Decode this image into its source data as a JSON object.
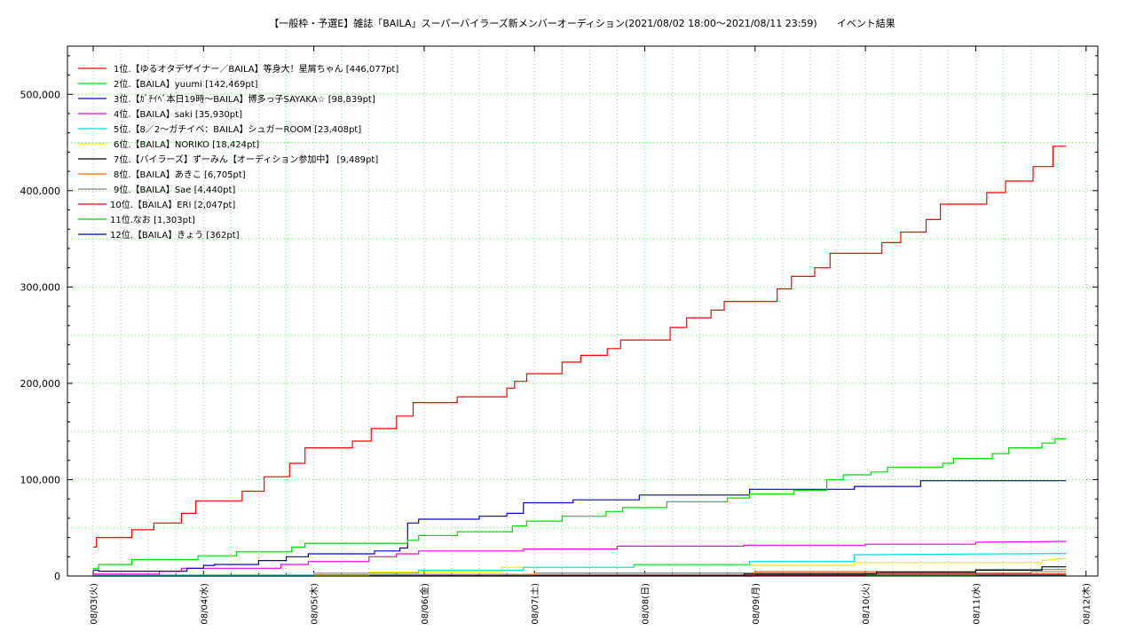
{
  "chart_data": {
    "type": "line",
    "title": "【一般枠・予選E】雑誌「BAILA」スーパーバイラーズ新メンバーオーディション(2021/08/02 18:00～2021/08/11 23:59)　　イベント結果",
    "xlabel": "",
    "ylabel": "",
    "ylim": [
      0,
      550000
    ],
    "xlim": [
      "2021-08-03",
      "2021-08-12"
    ],
    "grid": true,
    "legend_position": "top-left",
    "y_ticks": [
      {
        "value": 0,
        "label": "0"
      },
      {
        "value": 100000,
        "label": "100,000"
      },
      {
        "value": 200000,
        "label": "200,000"
      },
      {
        "value": 300000,
        "label": "300,000"
      },
      {
        "value": 400000,
        "label": "400,000"
      },
      {
        "value": 500000,
        "label": "500,000"
      }
    ],
    "x_ticks": [
      {
        "value": 0,
        "label": "08/03(火)"
      },
      {
        "value": 1,
        "label": "08/04(水)"
      },
      {
        "value": 2,
        "label": "08/05(木)"
      },
      {
        "value": 3,
        "label": "08/06(金)"
      },
      {
        "value": 4,
        "label": "08/07(土)"
      },
      {
        "value": 5,
        "label": "08/08(日)"
      },
      {
        "value": 6,
        "label": "08/09(月)"
      },
      {
        "value": 7,
        "label": "08/10(火)"
      },
      {
        "value": 8,
        "label": "08/11(水)"
      },
      {
        "value": 9,
        "label": "08/12(木)"
      }
    ],
    "series": [
      {
        "label": "1位.【ゆるオタデザイナー／BAILA】等身大！星屑ちゃん [446,077pt]",
        "color": "#ff0000",
        "points": [
          [
            0,
            30000
          ],
          [
            0.03,
            30000
          ],
          [
            0.03,
            40000
          ],
          [
            0.35,
            40000
          ],
          [
            0.35,
            48000
          ],
          [
            0.55,
            48000
          ],
          [
            0.55,
            55000
          ],
          [
            0.8,
            55000
          ],
          [
            0.8,
            65000
          ],
          [
            0.93,
            65000
          ],
          [
            0.93,
            78000
          ],
          [
            1.35,
            78000
          ],
          [
            1.35,
            88000
          ],
          [
            1.55,
            88000
          ],
          [
            1.55,
            103000
          ],
          [
            1.78,
            103000
          ],
          [
            1.78,
            117000
          ],
          [
            1.92,
            117000
          ],
          [
            1.92,
            133000
          ],
          [
            2.35,
            133000
          ],
          [
            2.35,
            140000
          ],
          [
            2.52,
            140000
          ],
          [
            2.52,
            153000
          ],
          [
            2.75,
            153000
          ],
          [
            2.75,
            166000
          ],
          [
            2.9,
            166000
          ],
          [
            2.9,
            180000
          ],
          [
            3.3,
            180000
          ],
          [
            3.3,
            186000
          ],
          [
            3.75,
            186000
          ],
          [
            3.75,
            195000
          ],
          [
            3.82,
            195000
          ],
          [
            3.82,
            202000
          ],
          [
            3.93,
            202000
          ],
          [
            3.93,
            210000
          ],
          [
            4.25,
            210000
          ],
          [
            4.25,
            222000
          ],
          [
            4.42,
            222000
          ],
          [
            4.42,
            229000
          ],
          [
            4.66,
            229000
          ],
          [
            4.66,
            236000
          ],
          [
            4.78,
            236000
          ],
          [
            4.78,
            245000
          ],
          [
            5.23,
            245000
          ],
          [
            5.23,
            258000
          ],
          [
            5.38,
            258000
          ],
          [
            5.38,
            268000
          ],
          [
            5.6,
            268000
          ],
          [
            5.6,
            276000
          ],
          [
            5.72,
            276000
          ],
          [
            5.72,
            285000
          ],
          [
            6.2,
            285000
          ],
          [
            6.2,
            298000
          ],
          [
            6.33,
            298000
          ],
          [
            6.33,
            311000
          ],
          [
            6.54,
            311000
          ],
          [
            6.54,
            320000
          ],
          [
            6.68,
            320000
          ],
          [
            6.68,
            335000
          ],
          [
            7.15,
            335000
          ],
          [
            7.15,
            346000
          ],
          [
            7.32,
            346000
          ],
          [
            7.32,
            357000
          ],
          [
            7.55,
            357000
          ],
          [
            7.55,
            370000
          ],
          [
            7.68,
            370000
          ],
          [
            7.68,
            386000
          ],
          [
            8.1,
            386000
          ],
          [
            8.1,
            398000
          ],
          [
            8.27,
            398000
          ],
          [
            8.27,
            410000
          ],
          [
            8.52,
            410000
          ],
          [
            8.52,
            425000
          ],
          [
            8.7,
            425000
          ],
          [
            8.7,
            446077
          ],
          [
            8.82,
            446077
          ]
        ]
      },
      {
        "label": "2位.【BAILA】yuumi [142,469pt]",
        "color": "#00dd00",
        "points": [
          [
            0,
            8000
          ],
          [
            0.05,
            8000
          ],
          [
            0.05,
            12000
          ],
          [
            0.35,
            12000
          ],
          [
            0.35,
            17000
          ],
          [
            0.95,
            17000
          ],
          [
            0.95,
            21000
          ],
          [
            1.3,
            21000
          ],
          [
            1.3,
            25000
          ],
          [
            1.8,
            25000
          ],
          [
            1.8,
            30000
          ],
          [
            1.92,
            30000
          ],
          [
            1.92,
            34000
          ],
          [
            2.85,
            34000
          ],
          [
            2.85,
            37000
          ],
          [
            2.95,
            37000
          ],
          [
            2.95,
            42000
          ],
          [
            3.3,
            42000
          ],
          [
            3.3,
            46000
          ],
          [
            3.8,
            46000
          ],
          [
            3.8,
            52000
          ],
          [
            3.93,
            52000
          ],
          [
            3.93,
            57000
          ],
          [
            4.25,
            57000
          ],
          [
            4.25,
            62000
          ],
          [
            4.65,
            62000
          ],
          [
            4.65,
            67000
          ],
          [
            4.8,
            67000
          ],
          [
            4.8,
            71000
          ],
          [
            5.2,
            71000
          ],
          [
            5.2,
            77000
          ],
          [
            5.75,
            77000
          ],
          [
            5.75,
            81000
          ],
          [
            5.95,
            81000
          ],
          [
            5.95,
            85000
          ],
          [
            6.35,
            85000
          ],
          [
            6.35,
            89000
          ],
          [
            6.65,
            89000
          ],
          [
            6.65,
            100000
          ],
          [
            6.8,
            100000
          ],
          [
            6.8,
            105000
          ],
          [
            7.05,
            105000
          ],
          [
            7.05,
            108000
          ],
          [
            7.2,
            108000
          ],
          [
            7.2,
            113000
          ],
          [
            7.7,
            113000
          ],
          [
            7.7,
            117000
          ],
          [
            7.8,
            117000
          ],
          [
            7.8,
            122000
          ],
          [
            8.15,
            122000
          ],
          [
            8.15,
            127000
          ],
          [
            8.3,
            127000
          ],
          [
            8.3,
            133000
          ],
          [
            8.6,
            133000
          ],
          [
            8.6,
            138000
          ],
          [
            8.72,
            138000
          ],
          [
            8.72,
            142469
          ],
          [
            8.82,
            142469
          ]
        ]
      },
      {
        "label": "3位.【ｶﾞﾁｲﾍﾞ本日19時〜BAILA】博多っ子SAYAKA☆ [98,839pt]",
        "color": "#0000dd",
        "points": [
          [
            0,
            6000
          ],
          [
            0.05,
            6000
          ],
          [
            0.05,
            5000
          ],
          [
            0.85,
            5000
          ],
          [
            0.85,
            8000
          ],
          [
            1.0,
            8000
          ],
          [
            1.0,
            11000
          ],
          [
            1.1,
            11000
          ],
          [
            1.1,
            12000
          ],
          [
            1.5,
            12000
          ],
          [
            1.5,
            16000
          ],
          [
            1.75,
            16000
          ],
          [
            1.75,
            20000
          ],
          [
            1.95,
            20000
          ],
          [
            1.95,
            23000
          ],
          [
            2.55,
            23000
          ],
          [
            2.55,
            26000
          ],
          [
            2.78,
            26000
          ],
          [
            2.78,
            29000
          ],
          [
            2.85,
            29000
          ],
          [
            2.85,
            55000
          ],
          [
            2.95,
            55000
          ],
          [
            2.95,
            59000
          ],
          [
            3.5,
            59000
          ],
          [
            3.5,
            62000
          ],
          [
            3.75,
            62000
          ],
          [
            3.75,
            65000
          ],
          [
            3.9,
            65000
          ],
          [
            3.9,
            76000
          ],
          [
            4.35,
            76000
          ],
          [
            4.35,
            79000
          ],
          [
            4.95,
            79000
          ],
          [
            4.95,
            84000
          ],
          [
            5.95,
            84000
          ],
          [
            5.95,
            90000
          ],
          [
            6.9,
            90000
          ],
          [
            6.9,
            93000
          ],
          [
            7.5,
            93000
          ],
          [
            7.5,
            98839
          ],
          [
            8.82,
            98839
          ]
        ]
      },
      {
        "label": "4位.【BAILA】saki [35,930pt]",
        "color": "#ee00ee",
        "points": [
          [
            0,
            2000
          ],
          [
            0.6,
            2000
          ],
          [
            0.6,
            5000
          ],
          [
            0.8,
            5000
          ],
          [
            0.8,
            8000
          ],
          [
            1.7,
            8000
          ],
          [
            1.7,
            12000
          ],
          [
            1.95,
            12000
          ],
          [
            1.95,
            15000
          ],
          [
            2.5,
            15000
          ],
          [
            2.5,
            20000
          ],
          [
            2.75,
            20000
          ],
          [
            2.75,
            23000
          ],
          [
            2.95,
            23000
          ],
          [
            2.95,
            26000
          ],
          [
            3.9,
            26000
          ],
          [
            3.9,
            28000
          ],
          [
            4.75,
            28000
          ],
          [
            4.75,
            31000
          ],
          [
            5.9,
            31000
          ],
          [
            5.9,
            32000
          ],
          [
            7.0,
            32000
          ],
          [
            7.0,
            33000
          ],
          [
            8.0,
            33000
          ],
          [
            8.0,
            35000
          ],
          [
            8.82,
            35930
          ]
        ]
      },
      {
        "label": "5位.【8／2〜ガチイベ：BAILA】シュガーROOM [23,408pt]",
        "color": "#00dddd",
        "points": [
          [
            0,
            1000
          ],
          [
            2.0,
            1000
          ],
          [
            2.0,
            3000
          ],
          [
            2.95,
            3000
          ],
          [
            2.95,
            6000
          ],
          [
            3.9,
            6000
          ],
          [
            3.9,
            9000
          ],
          [
            4.9,
            9000
          ],
          [
            4.9,
            12000
          ],
          [
            5.95,
            12000
          ],
          [
            5.95,
            15000
          ],
          [
            6.9,
            15000
          ],
          [
            6.9,
            22000
          ],
          [
            8.82,
            23408
          ]
        ]
      },
      {
        "label": "6位.【BAILA】NORIKO [18,424pt]",
        "color": "#eeee00",
        "points": [
          [
            0,
            500
          ],
          [
            2.5,
            500
          ],
          [
            2.5,
            4000
          ],
          [
            3.7,
            4000
          ],
          [
            3.7,
            9000
          ],
          [
            4.9,
            9000
          ],
          [
            4.9,
            11000
          ],
          [
            6.9,
            11000
          ],
          [
            6.9,
            14000
          ],
          [
            8.6,
            14000
          ],
          [
            8.6,
            16000
          ],
          [
            8.82,
            18424
          ]
        ]
      },
      {
        "label": "7位.【バイラーズ】ずーみん【オーディション参加中】 [9,489pt]",
        "color": "#000000",
        "points": [
          [
            0,
            200
          ],
          [
            5.9,
            200
          ],
          [
            5.9,
            2000
          ],
          [
            7.1,
            2000
          ],
          [
            7.1,
            4000
          ],
          [
            8.0,
            4000
          ],
          [
            8.0,
            6000
          ],
          [
            8.6,
            6000
          ],
          [
            8.6,
            9489
          ],
          [
            8.82,
            9489
          ]
        ]
      },
      {
        "label": "8位.【BAILA】あきこ [6,705pt]",
        "color": "#ff6600",
        "points": [
          [
            0,
            500
          ],
          [
            2.0,
            500
          ],
          [
            2.0,
            1500
          ],
          [
            4.0,
            1500
          ],
          [
            4.0,
            3000
          ],
          [
            6.0,
            3000
          ],
          [
            6.0,
            4500
          ],
          [
            8.0,
            4500
          ],
          [
            8.0,
            6705
          ],
          [
            8.82,
            6705
          ]
        ]
      },
      {
        "label": "9位.【BAILA】Sae [4,440pt]",
        "color": "#888888",
        "points": [
          [
            0,
            300
          ],
          [
            3.0,
            300
          ],
          [
            3.0,
            1500
          ],
          [
            6.0,
            1500
          ],
          [
            6.0,
            3000
          ],
          [
            8.5,
            3000
          ],
          [
            8.5,
            4440
          ],
          [
            8.82,
            4440
          ]
        ]
      },
      {
        "label": "10位.【BAILA】ERI [2,047pt]",
        "color": "#dd0000",
        "points": [
          [
            0,
            100
          ],
          [
            4.0,
            100
          ],
          [
            4.0,
            1000
          ],
          [
            7.0,
            1000
          ],
          [
            7.0,
            2047
          ],
          [
            8.82,
            2047
          ]
        ]
      },
      {
        "label": "11位.なお [1,303pt]",
        "color": "#00cc00",
        "points": [
          [
            0,
            100
          ],
          [
            5.0,
            100
          ],
          [
            5.0,
            800
          ],
          [
            8.0,
            800
          ],
          [
            8.0,
            1303
          ],
          [
            8.82,
            1303
          ]
        ]
      },
      {
        "label": "12位.【BAILA】きょう [362pt]",
        "color": "#0000cc",
        "points": [
          [
            0,
            0
          ],
          [
            6.0,
            0
          ],
          [
            6.0,
            362
          ],
          [
            8.82,
            362
          ]
        ]
      }
    ]
  }
}
